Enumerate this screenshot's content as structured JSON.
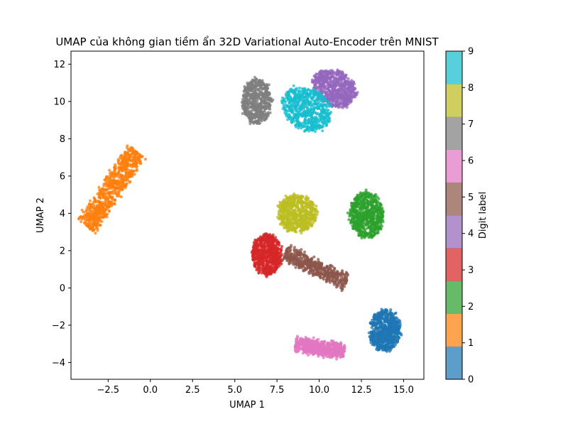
{
  "chart_data": {
    "type": "scatter",
    "title": "UMAP của không gian tiềm ẩn 32D Variational Auto-Encoder trên MNIST",
    "xlabel": "UMAP 1",
    "ylabel": "UMAP 2",
    "xlim": [
      -4.7,
      16.2
    ],
    "ylim": [
      -4.9,
      12.7
    ],
    "xticks": [
      -2.5,
      0.0,
      2.5,
      5.0,
      7.5,
      10.0,
      12.5,
      15.0
    ],
    "xtick_labels": [
      "−2.5",
      "0.0",
      "2.5",
      "5.0",
      "7.5",
      "10.0",
      "12.5",
      "15.0"
    ],
    "yticks": [
      -4,
      -2,
      0,
      2,
      4,
      6,
      8,
      10,
      12
    ],
    "ytick_labels": [
      "−4",
      "−2",
      "0",
      "2",
      "4",
      "6",
      "8",
      "10",
      "12"
    ],
    "grid": false,
    "colorbar": {
      "label": "Digit label",
      "range": [
        0,
        9
      ],
      "ticks": [
        "0",
        "1",
        "2",
        "3",
        "4",
        "5",
        "6",
        "7",
        "8",
        "9"
      ],
      "colors": [
        "#1f77b4",
        "#ff7f0e",
        "#2ca02c",
        "#d62728",
        "#9467bd",
        "#8c564b",
        "#e377c2",
        "#7f7f7f",
        "#bcbd22",
        "#17becf"
      ]
    },
    "clusters": [
      {
        "label": 0,
        "shape": "ellipse",
        "center": [
          13.9,
          -2.3
        ],
        "radii": [
          0.9,
          1.1
        ],
        "angle": 0,
        "count": 700
      },
      {
        "label": 1,
        "shape": "segment",
        "from": [
          -3.8,
          3.3
        ],
        "to": [
          -0.8,
          7.3
        ],
        "width": 1.15,
        "count": 750
      },
      {
        "label": 2,
        "shape": "ellipse",
        "center": [
          12.8,
          3.9
        ],
        "radii": [
          1.0,
          1.25
        ],
        "angle": 0,
        "count": 650
      },
      {
        "label": 3,
        "shape": "ellipse",
        "center": [
          6.9,
          1.8
        ],
        "radii": [
          0.85,
          1.1
        ],
        "angle": 0,
        "count": 650
      },
      {
        "label": 4,
        "shape": "ellipse",
        "center": [
          10.9,
          10.7
        ],
        "radii": [
          1.35,
          0.95
        ],
        "angle": -20,
        "count": 650
      },
      {
        "label": 5,
        "shape": "segment",
        "from": [
          8.0,
          1.9
        ],
        "to": [
          11.6,
          0.3
        ],
        "width": 0.75,
        "count": 500
      },
      {
        "label": 6,
        "shape": "segment",
        "from": [
          8.6,
          -3.0
        ],
        "to": [
          11.5,
          -3.4
        ],
        "width": 0.65,
        "count": 650
      },
      {
        "label": 7,
        "shape": "ellipse",
        "center": [
          6.3,
          10.0
        ],
        "radii": [
          0.85,
          1.2
        ],
        "angle": 0,
        "count": 600
      },
      {
        "label": 8,
        "shape": "ellipse",
        "center": [
          8.7,
          4.0
        ],
        "radii": [
          1.15,
          1.0
        ],
        "angle": 0,
        "count": 650
      },
      {
        "label": 9,
        "shape": "ellipse",
        "center": [
          9.3,
          9.6
        ],
        "radii": [
          1.5,
          1.1
        ],
        "angle": -25,
        "count": 650
      }
    ]
  }
}
